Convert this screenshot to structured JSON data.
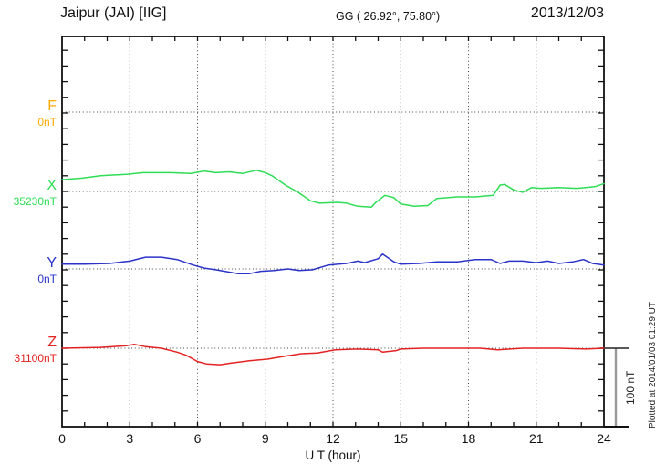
{
  "header": {
    "station": "Jaipur (JAI)  [IIG]",
    "coords": "GG ( 26.92°,  75.80°)",
    "date": "2013/12/03"
  },
  "axis": {
    "x_ticks": [
      "0",
      "3",
      "6",
      "9",
      "12",
      "15",
      "18",
      "21",
      "24"
    ],
    "x_label": "U T (hour)"
  },
  "scale_bar": {
    "label": "100 nT",
    "nT": 100
  },
  "footer_note": "Plotted at 2014/01/03 01:29 UT",
  "chart_data": {
    "type": "line",
    "title": "Jaipur (JAI) [IIG] magnetogram 2013/12/03",
    "xlabel": "U T (hour)",
    "x_range": [
      0,
      24
    ],
    "x_gridlines_every_hours": 3,
    "minor_tick_nT": 20,
    "scale_bar_nT": 100,
    "y_unit": "nT",
    "legend_position": "left",
    "series": [
      {
        "id": "F",
        "label": "F",
        "baseline_label": "0nT",
        "baseline_nT": 0,
        "color": "#ffaa00",
        "x": [],
        "values": []
      },
      {
        "id": "X",
        "label": "X",
        "baseline_label": "35230nT",
        "baseline_nT": 35230,
        "color": "#2edd55",
        "x": [
          0,
          0.9,
          1.7,
          2.9,
          3.6,
          4.8,
          5.7,
          6.3,
          6.8,
          7.4,
          8.0,
          8.6,
          9.0,
          9.3,
          9.9,
          10.5,
          11.0,
          11.4,
          12.2,
          12.6,
          13.1,
          13.7,
          13.9,
          14.3,
          14.7,
          15.0,
          15.6,
          16.2,
          16.6,
          17.5,
          18.3,
          19.1,
          19.4,
          19.6,
          20.0,
          20.4,
          20.8,
          21.2,
          22.0,
          22.8,
          23.6,
          24
        ],
        "values": [
          35245,
          35247,
          35250,
          35252,
          35254,
          35254,
          35253,
          35256,
          35254,
          35255,
          35253,
          35257,
          35254,
          35250,
          35238,
          35228,
          35218,
          35215,
          35216,
          35215,
          35211,
          35210,
          35216,
          35225,
          35222,
          35214,
          35211,
          35212,
          35221,
          35223,
          35223,
          35225,
          35238,
          35239,
          35232,
          35229,
          35235,
          35234,
          35235,
          35234,
          35236,
          35240
        ]
      },
      {
        "id": "Y",
        "label": "Y",
        "baseline_label": "0nT",
        "baseline_nT": 0,
        "color": "#2a33c8",
        "x": [
          0,
          1.0,
          2.1,
          3.0,
          3.7,
          4.4,
          5.1,
          5.8,
          6.3,
          6.8,
          7.2,
          7.8,
          8.3,
          8.8,
          9.4,
          10.0,
          10.5,
          11.1,
          11.8,
          12.6,
          13.1,
          13.4,
          14.0,
          14.2,
          14.4,
          14.7,
          15.0,
          15.8,
          16.6,
          17.5,
          18.3,
          19.0,
          19.4,
          19.8,
          20.4,
          21.0,
          21.5,
          22.0,
          22.6,
          23.1,
          23.5,
          24
        ],
        "values": [
          6,
          6,
          7,
          10,
          15,
          15,
          12,
          5,
          1,
          -1,
          -3,
          -6,
          -6,
          -3,
          -2,
          0,
          -2,
          -1,
          5,
          7,
          10,
          8,
          13,
          19,
          15,
          9,
          6,
          7,
          9,
          9,
          12,
          12,
          7,
          10,
          10,
          8,
          10,
          7,
          9,
          12,
          7,
          5
        ]
      },
      {
        "id": "Z",
        "label": "Z",
        "baseline_label": "31100nT",
        "baseline_nT": 31100,
        "color": "#e42222",
        "x": [
          0,
          1.7,
          2.8,
          3.2,
          3.7,
          4.4,
          5.1,
          5.5,
          6.0,
          6.4,
          7.0,
          7.5,
          8.3,
          9.1,
          9.9,
          10.6,
          11.3,
          12.1,
          13.1,
          14.0,
          14.2,
          14.8,
          15.0,
          16.0,
          17.2,
          18.5,
          19.3,
          20.4,
          21.2,
          22.0,
          23.2,
          24
        ],
        "values": [
          31100,
          31101,
          31103,
          31105,
          31102,
          31100,
          31095,
          31091,
          31083,
          31080,
          31079,
          31081,
          31084,
          31086,
          31090,
          31093,
          31094,
          31098,
          31099,
          31098,
          31095,
          31097,
          31099,
          31100,
          31100,
          31100,
          31098,
          31100,
          31100,
          31100,
          31099,
          31100
        ]
      }
    ]
  }
}
